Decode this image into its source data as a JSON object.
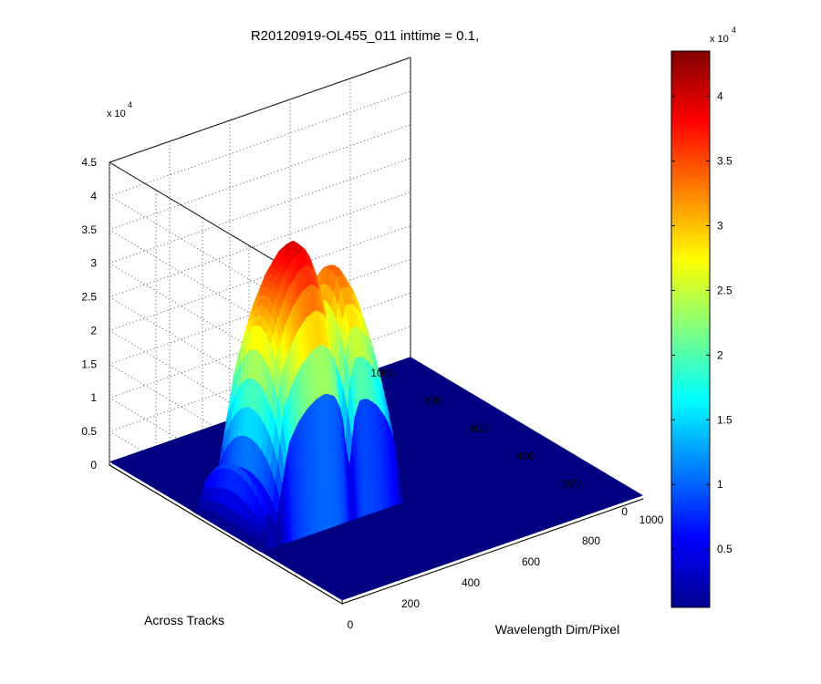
{
  "chart_data": {
    "type": "surface3d",
    "title": "R20120919-OL455_011 inttime = 0.1,",
    "xlabel": "Wavelength Dim/Pixel",
    "ylabel": "Across Tracks",
    "zlabel": "",
    "xlim": [
      0,
      1000
    ],
    "ylim": [
      0,
      1000
    ],
    "zlim": [
      0,
      45000
    ],
    "x_ticks": [
      0,
      200,
      400,
      600,
      800,
      1000
    ],
    "y_ticks": [
      0,
      200,
      400,
      600,
      800,
      1000
    ],
    "z_ticks": [
      0,
      5000,
      10000,
      15000,
      20000,
      25000,
      30000,
      35000,
      40000,
      45000
    ],
    "z_tick_labels": [
      "0",
      "0.5",
      "1",
      "1.5",
      "2",
      "2.5",
      "3",
      "3.5",
      "4",
      "4.5"
    ],
    "z_exponent": {
      "base": "x 10",
      "power": "4"
    },
    "grid": true,
    "colormap": "jet",
    "colorbar": {
      "range": [
        500,
        43500
      ],
      "ticks": [
        5000,
        10000,
        15000,
        20000,
        25000,
        30000,
        35000,
        40000
      ],
      "tick_labels": [
        "0.5",
        "1",
        "1.5",
        "2",
        "2.5",
        "3",
        "3.5",
        "4"
      ],
      "exponent": {
        "base": "x 10",
        "power": "4"
      }
    },
    "signal_region": {
      "x_range": [
        0,
        480
      ],
      "y_range": [
        350,
        650
      ],
      "peak_value": 40000,
      "baseline": 500,
      "spectral_profile": [
        {
          "x": 0,
          "v": 0.0
        },
        {
          "x": 20,
          "v": 0.1
        },
        {
          "x": 35,
          "v": 0.24
        },
        {
          "x": 50,
          "v": 0.2
        },
        {
          "x": 65,
          "v": 0.1
        },
        {
          "x": 80,
          "v": 0.32
        },
        {
          "x": 110,
          "v": 0.72
        },
        {
          "x": 140,
          "v": 0.85
        },
        {
          "x": 170,
          "v": 0.93
        },
        {
          "x": 200,
          "v": 0.98
        },
        {
          "x": 230,
          "v": 1.0
        },
        {
          "x": 260,
          "v": 0.96
        },
        {
          "x": 285,
          "v": 0.82
        },
        {
          "x": 300,
          "v": 0.5
        },
        {
          "x": 312,
          "v": 0.38
        },
        {
          "x": 325,
          "v": 0.72
        },
        {
          "x": 345,
          "v": 0.86
        },
        {
          "x": 370,
          "v": 0.85
        },
        {
          "x": 400,
          "v": 0.78
        },
        {
          "x": 430,
          "v": 0.66
        },
        {
          "x": 455,
          "v": 0.5
        },
        {
          "x": 470,
          "v": 0.3
        },
        {
          "x": 480,
          "v": 0.0
        }
      ]
    }
  }
}
